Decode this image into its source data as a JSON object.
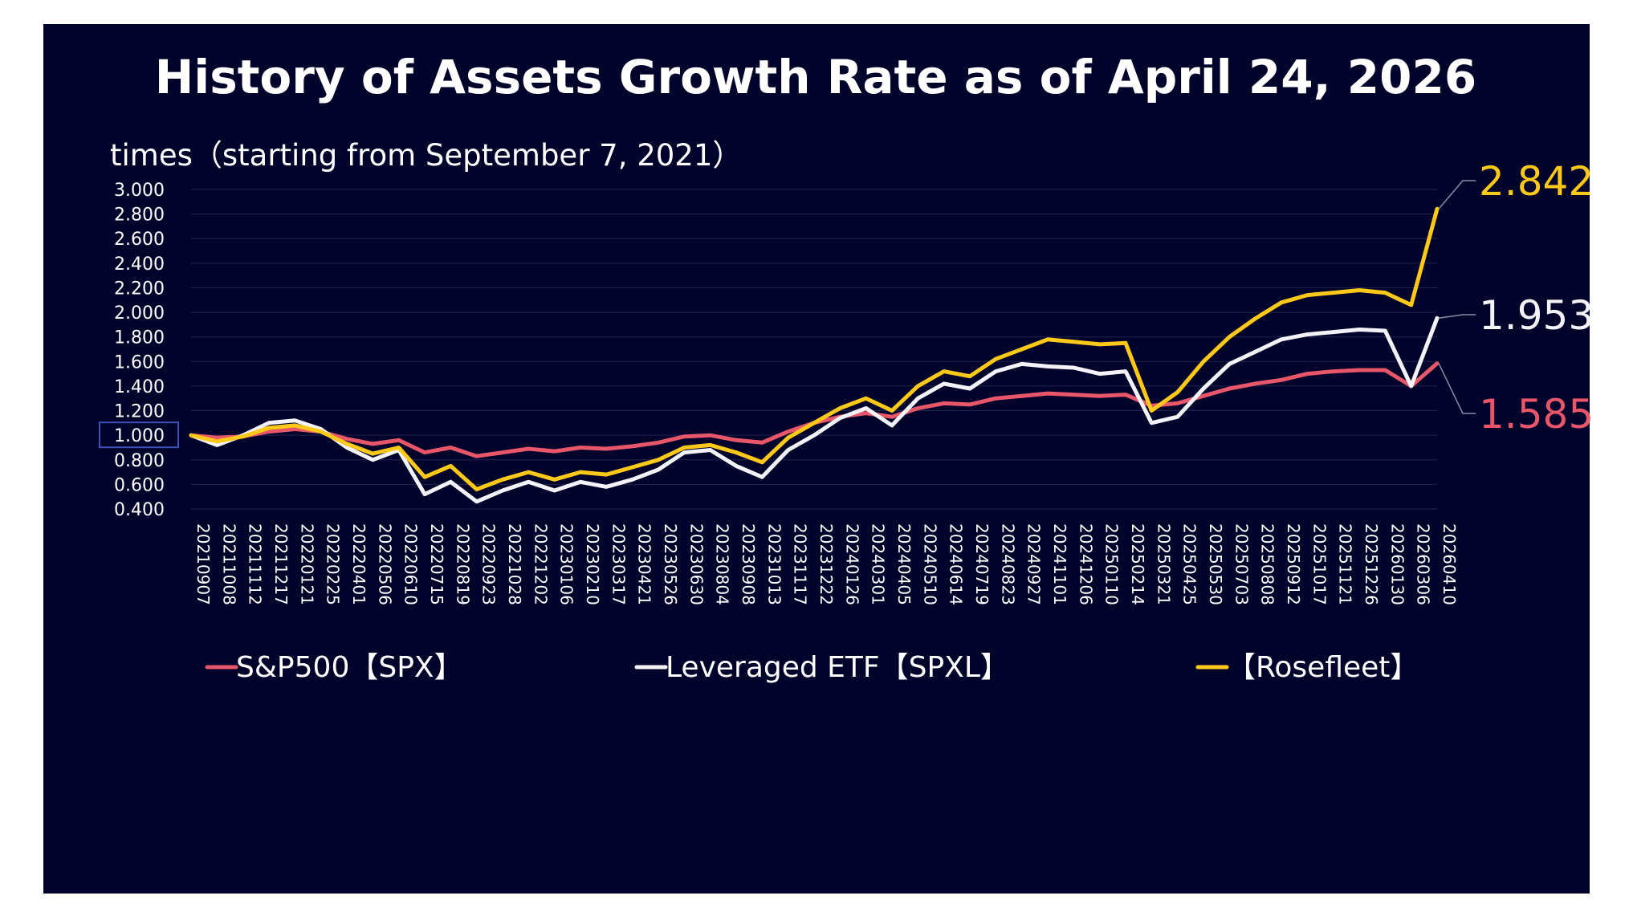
{
  "colors": {
    "background": "#02032b",
    "spx": "#e8566a",
    "spxl": "#f2f2f7",
    "rosefleet": "#ffc91a",
    "grid": "#1f2550",
    "baseline_box": "#3a52b8"
  },
  "chart_data": {
    "type": "line",
    "title": "History of Assets Growth Rate as of April 24, 2026",
    "ylabel": "times（starting from September 7, 2021）",
    "ylim": [
      0.4,
      3.0
    ],
    "y_ticks": [
      "3.000",
      "2.800",
      "2.600",
      "2.400",
      "2.200",
      "2.000",
      "1.800",
      "1.600",
      "1.400",
      "1.200",
      "1.000",
      "0.800",
      "0.600",
      "0.400"
    ],
    "highlight_tick": "1.000",
    "grid": true,
    "legend_position": "bottom",
    "x_ticks": [
      "20210907",
      "20211008",
      "20211112",
      "20211217",
      "20220121",
      "20220225",
      "20220401",
      "20220506",
      "20220610",
      "20220715",
      "20220819",
      "20220923",
      "20221028",
      "20221202",
      "20230106",
      "20230210",
      "20230317",
      "20230421",
      "20230526",
      "20230630",
      "20230804",
      "20230908",
      "20231013",
      "20231117",
      "20231222",
      "20240126",
      "20240301",
      "20240405",
      "20240510",
      "20240614",
      "20240719",
      "20240823",
      "20240927",
      "20241101",
      "20241206",
      "20250110",
      "20250214",
      "20250321",
      "20250425",
      "20250530",
      "20250703",
      "20250808",
      "20250912",
      "20251017",
      "20251121",
      "20251226",
      "20260130",
      "20260306",
      "20260410"
    ],
    "series": [
      {
        "name": "S&P500【SPX】",
        "end_label": "1.585",
        "values": [
          1.0,
          0.98,
          0.99,
          1.03,
          1.05,
          1.03,
          0.97,
          0.93,
          0.96,
          0.86,
          0.9,
          0.83,
          0.86,
          0.89,
          0.87,
          0.9,
          0.89,
          0.91,
          0.94,
          0.99,
          1.0,
          0.96,
          0.94,
          1.03,
          1.1,
          1.15,
          1.18,
          1.15,
          1.22,
          1.26,
          1.25,
          1.3,
          1.32,
          1.34,
          1.33,
          1.32,
          1.33,
          1.24,
          1.26,
          1.32,
          1.38,
          1.42,
          1.45,
          1.5,
          1.52,
          1.53,
          1.53,
          1.4,
          1.585
        ]
      },
      {
        "name": "Leveraged ETF【SPXL】",
        "end_label": "1.953",
        "values": [
          1.0,
          0.92,
          1.0,
          1.1,
          1.12,
          1.05,
          0.9,
          0.8,
          0.88,
          0.52,
          0.62,
          0.46,
          0.55,
          0.62,
          0.55,
          0.62,
          0.58,
          0.64,
          0.72,
          0.86,
          0.88,
          0.75,
          0.66,
          0.88,
          1.0,
          1.14,
          1.22,
          1.08,
          1.3,
          1.42,
          1.38,
          1.52,
          1.58,
          1.56,
          1.55,
          1.5,
          1.52,
          1.1,
          1.15,
          1.38,
          1.58,
          1.68,
          1.78,
          1.82,
          1.84,
          1.86,
          1.85,
          1.4,
          1.953
        ]
      },
      {
        "name": "【Rosefleet】",
        "end_label": "2.842",
        "values": [
          1.0,
          0.95,
          0.99,
          1.06,
          1.08,
          1.03,
          0.93,
          0.85,
          0.9,
          0.66,
          0.75,
          0.56,
          0.64,
          0.7,
          0.64,
          0.7,
          0.68,
          0.74,
          0.8,
          0.9,
          0.92,
          0.86,
          0.78,
          0.98,
          1.1,
          1.22,
          1.3,
          1.2,
          1.4,
          1.52,
          1.48,
          1.62,
          1.7,
          1.78,
          1.76,
          1.74,
          1.75,
          1.2,
          1.35,
          1.6,
          1.8,
          1.95,
          2.08,
          2.14,
          2.16,
          2.18,
          2.16,
          2.06,
          2.842
        ]
      }
    ]
  }
}
